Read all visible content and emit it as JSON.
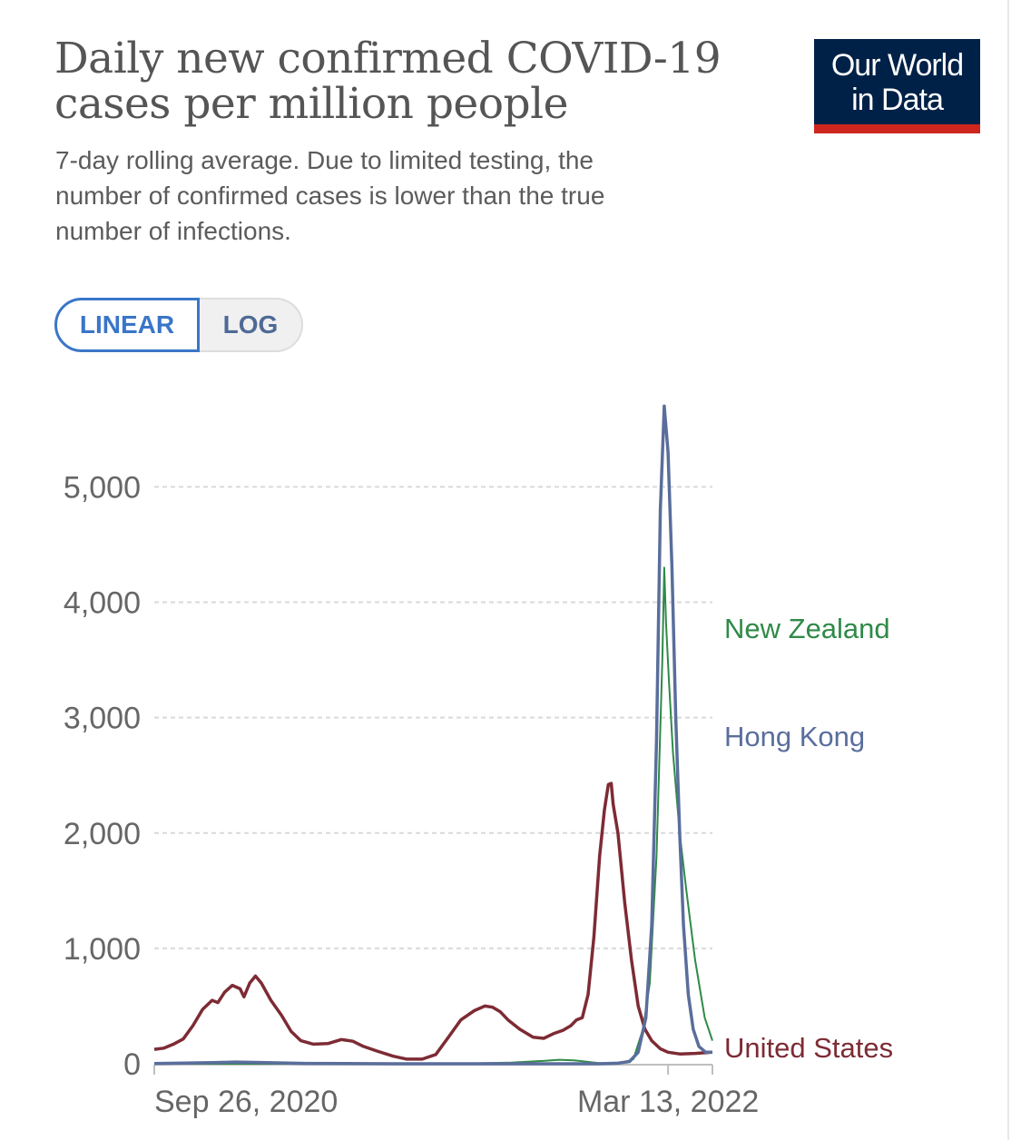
{
  "header": {
    "title_line1": "Daily new confirmed COVID-19",
    "title_line2": "cases per million people",
    "subtitle_line1": "7-day rolling average. Due to limited testing, the",
    "subtitle_line2": "number of confirmed cases is lower than the true",
    "subtitle_line3": "number of infections."
  },
  "logo": {
    "line1": "Our World",
    "line2": "in Data"
  },
  "controls": {
    "linear_label": "LINEAR",
    "log_label": "LOG",
    "selected": "LINEAR"
  },
  "colors": {
    "united_states": "#7d2b34",
    "hong_kong": "#5a6e9c",
    "new_zealand": "#2f8a47",
    "logo_bg": "#002147",
    "logo_bar": "#ce261e",
    "accent": "#3a76c8"
  },
  "chart_data": {
    "type": "line",
    "title": "Daily new confirmed COVID-19 cases per million people",
    "xlabel": "",
    "ylabel": "",
    "x_range": [
      "2020-09-26",
      "2022-04-28"
    ],
    "ylim": [
      0,
      5900
    ],
    "y_ticks": [
      0,
      1000,
      2000,
      3000,
      4000,
      5000
    ],
    "y_tick_labels": [
      "0",
      "1,000",
      "2,000",
      "3,000",
      "4,000",
      "5,000"
    ],
    "x_ticks": [
      "2020-09-26",
      "2022-03-13"
    ],
    "x_tick_labels": [
      "Sep 26, 2020",
      "Mar 13, 2022"
    ],
    "grid": "horizontal dashed",
    "legend": "inline labels at line ends",
    "series": [
      {
        "name": "United States",
        "points": [
          [
            "2020-09-26",
            125
          ],
          [
            "2020-10-06",
            135
          ],
          [
            "2020-10-16",
            170
          ],
          [
            "2020-10-26",
            215
          ],
          [
            "2020-11-05",
            330
          ],
          [
            "2020-11-15",
            470
          ],
          [
            "2020-11-25",
            550
          ],
          [
            "2020-12-01",
            530
          ],
          [
            "2020-12-08",
            620
          ],
          [
            "2020-12-16",
            680
          ],
          [
            "2020-12-24",
            650
          ],
          [
            "2020-12-28",
            580
          ],
          [
            "2021-01-03",
            700
          ],
          [
            "2021-01-09",
            760
          ],
          [
            "2021-01-15",
            700
          ],
          [
            "2021-01-25",
            550
          ],
          [
            "2021-02-05",
            420
          ],
          [
            "2021-02-15",
            280
          ],
          [
            "2021-02-25",
            200
          ],
          [
            "2021-03-10",
            170
          ],
          [
            "2021-03-25",
            175
          ],
          [
            "2021-04-08",
            210
          ],
          [
            "2021-04-20",
            195
          ],
          [
            "2021-05-01",
            150
          ],
          [
            "2021-05-15",
            110
          ],
          [
            "2021-06-01",
            65
          ],
          [
            "2021-06-15",
            40
          ],
          [
            "2021-07-01",
            40
          ],
          [
            "2021-07-15",
            80
          ],
          [
            "2021-07-29",
            240
          ],
          [
            "2021-08-10",
            380
          ],
          [
            "2021-08-24",
            460
          ],
          [
            "2021-09-04",
            500
          ],
          [
            "2021-09-12",
            490
          ],
          [
            "2021-09-20",
            450
          ],
          [
            "2021-09-28",
            380
          ],
          [
            "2021-10-10",
            300
          ],
          [
            "2021-10-24",
            230
          ],
          [
            "2021-11-04",
            220
          ],
          [
            "2021-11-14",
            260
          ],
          [
            "2021-11-24",
            290
          ],
          [
            "2021-12-02",
            330
          ],
          [
            "2021-12-08",
            380
          ],
          [
            "2021-12-14",
            400
          ],
          [
            "2021-12-20",
            600
          ],
          [
            "2021-12-26",
            1100
          ],
          [
            "2022-01-01",
            1800
          ],
          [
            "2022-01-06",
            2200
          ],
          [
            "2022-01-10",
            2420
          ],
          [
            "2022-01-13",
            2430
          ],
          [
            "2022-01-15",
            2250
          ],
          [
            "2022-01-17",
            2150
          ],
          [
            "2022-01-20",
            2000
          ],
          [
            "2022-01-27",
            1400
          ],
          [
            "2022-02-03",
            900
          ],
          [
            "2022-02-10",
            500
          ],
          [
            "2022-02-17",
            300
          ],
          [
            "2022-02-24",
            200
          ],
          [
            "2022-03-05",
            130
          ],
          [
            "2022-03-13",
            100
          ],
          [
            "2022-03-25",
            85
          ],
          [
            "2022-04-10",
            90
          ],
          [
            "2022-04-28",
            100
          ]
        ]
      },
      {
        "name": "Hong Kong",
        "points": [
          [
            "2020-09-26",
            2
          ],
          [
            "2020-11-25",
            10
          ],
          [
            "2020-12-20",
            15
          ],
          [
            "2021-01-20",
            10
          ],
          [
            "2021-03-01",
            3
          ],
          [
            "2021-06-01",
            0
          ],
          [
            "2021-12-31",
            0
          ],
          [
            "2022-01-20",
            5
          ],
          [
            "2022-02-01",
            20
          ],
          [
            "2022-02-10",
            100
          ],
          [
            "2022-02-18",
            400
          ],
          [
            "2022-02-24",
            1200
          ],
          [
            "2022-03-01",
            2800
          ],
          [
            "2022-03-05",
            4800
          ],
          [
            "2022-03-09",
            5700
          ],
          [
            "2022-03-13",
            5300
          ],
          [
            "2022-03-17",
            4300
          ],
          [
            "2022-03-21",
            3000
          ],
          [
            "2022-03-25",
            2000
          ],
          [
            "2022-03-29",
            1200
          ],
          [
            "2022-04-03",
            600
          ],
          [
            "2022-04-08",
            300
          ],
          [
            "2022-04-14",
            150
          ],
          [
            "2022-04-21",
            100
          ],
          [
            "2022-04-28",
            100
          ]
        ]
      },
      {
        "name": "New Zealand",
        "points": [
          [
            "2020-09-26",
            0
          ],
          [
            "2021-08-15",
            0
          ],
          [
            "2021-09-01",
            5
          ],
          [
            "2021-10-01",
            10
          ],
          [
            "2021-11-05",
            25
          ],
          [
            "2021-11-20",
            35
          ],
          [
            "2021-12-05",
            30
          ],
          [
            "2022-01-01",
            5
          ],
          [
            "2022-01-25",
            10
          ],
          [
            "2022-02-05",
            40
          ],
          [
            "2022-02-15",
            300
          ],
          [
            "2022-02-22",
            700
          ],
          [
            "2022-03-01",
            1800
          ],
          [
            "2022-03-07",
            3500
          ],
          [
            "2022-03-09",
            4300
          ],
          [
            "2022-03-11",
            3800
          ],
          [
            "2022-03-14",
            3300
          ],
          [
            "2022-03-18",
            2700
          ],
          [
            "2022-03-25",
            2000
          ],
          [
            "2022-04-01",
            1500
          ],
          [
            "2022-04-10",
            900
          ],
          [
            "2022-04-20",
            400
          ],
          [
            "2022-04-28",
            200
          ]
        ]
      }
    ]
  }
}
